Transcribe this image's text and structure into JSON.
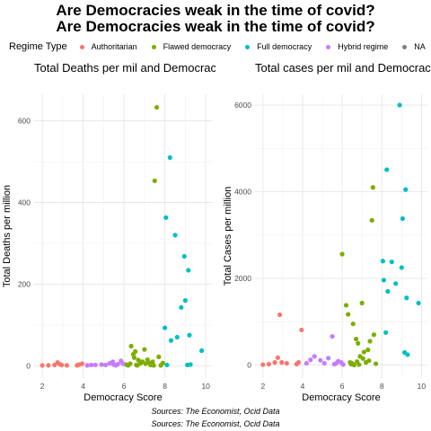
{
  "titles": [
    "Are Democracies weak in the time of covid?",
    "Are Democracies weak in the time of covid?"
  ],
  "legend": {
    "title": "Regime Type",
    "items": [
      {
        "label": "Authoritarian",
        "color": "#f8766d"
      },
      {
        "label": "Flawed democracy",
        "color": "#7cae00"
      },
      {
        "label": "Full democracy",
        "color": "#00bfc4"
      },
      {
        "label": "Hybrid regime",
        "color": "#c77cff"
      },
      {
        "label": "NA",
        "color": "#7f7f7f"
      }
    ]
  },
  "sources": [
    "Sources: The Economist, Ocid Data",
    "Sources: The Economist, Ocid Data"
  ],
  "chart_data": [
    {
      "type": "scatter",
      "title": "Total Deaths per mil and Democracy",
      "xlabel": "Democracy Score",
      "ylabel": "Total Deaths per million",
      "xlim": [
        1.6,
        10.3
      ],
      "ylim": [
        -30,
        665
      ],
      "xticks": [
        2,
        4,
        6,
        8,
        10
      ],
      "yticks": [
        0,
        200,
        400,
        600
      ],
      "grid": true,
      "series": [
        {
          "name": "Authoritarian",
          "color": "#f8766d",
          "points": [
            [
              2.0,
              1
            ],
            [
              2.3,
              1
            ],
            [
              2.6,
              2
            ],
            [
              2.75,
              8
            ],
            [
              2.85,
              4
            ],
            [
              2.95,
              2
            ],
            [
              3.2,
              1
            ],
            [
              3.8,
              3
            ],
            [
              3.95,
              5
            ],
            [
              3.7,
              1
            ]
          ]
        },
        {
          "name": "Flawed democracy",
          "color": "#7cae00",
          "points": [
            [
              6.1,
              3
            ],
            [
              6.2,
              1
            ],
            [
              6.3,
              5
            ],
            [
              6.35,
              48
            ],
            [
              6.45,
              28
            ],
            [
              6.5,
              20
            ],
            [
              6.55,
              35
            ],
            [
              6.6,
              2
            ],
            [
              6.7,
              14
            ],
            [
              6.8,
              6
            ],
            [
              6.9,
              10
            ],
            [
              7.0,
              40
            ],
            [
              7.05,
              5
            ],
            [
              7.2,
              8
            ],
            [
              7.3,
              2
            ],
            [
              7.4,
              10
            ],
            [
              7.5,
              453
            ],
            [
              7.6,
              633
            ],
            [
              7.7,
              22
            ],
            [
              7.8,
              1
            ],
            [
              7.9,
              7
            ],
            [
              7.15,
              15
            ],
            [
              6.65,
              1
            ],
            [
              7.45,
              1
            ]
          ]
        },
        {
          "name": "Full democracy",
          "color": "#00bfc4",
          "points": [
            [
              8.0,
              93
            ],
            [
              8.05,
              363
            ],
            [
              8.25,
              510
            ],
            [
              8.3,
              62
            ],
            [
              8.1,
              2
            ],
            [
              8.5,
              320
            ],
            [
              8.6,
              70
            ],
            [
              8.8,
              143
            ],
            [
              8.95,
              268
            ],
            [
              9.0,
              160
            ],
            [
              9.15,
              234
            ],
            [
              9.2,
              75
            ],
            [
              9.1,
              2
            ],
            [
              9.25,
              3
            ],
            [
              9.8,
              37
            ]
          ]
        },
        {
          "name": "Hybrid regime",
          "color": "#c77cff",
          "points": [
            [
              4.2,
              1
            ],
            [
              4.4,
              2
            ],
            [
              4.9,
              3
            ],
            [
              5.1,
              2
            ],
            [
              5.3,
              6
            ],
            [
              5.45,
              10
            ],
            [
              5.5,
              3
            ],
            [
              5.6,
              1
            ],
            [
              5.85,
              12
            ],
            [
              5.95,
              5
            ],
            [
              4.6,
              2
            ],
            [
              5.7,
              4
            ]
          ]
        }
      ]
    },
    {
      "type": "scatter",
      "title": "Total cases per mil and Democracy",
      "xlabel": "Democracy Score",
      "ylabel": "Total Cases per million",
      "xlim": [
        1.6,
        10.3
      ],
      "ylim": [
        -300,
        6250
      ],
      "xticks": [
        2,
        4,
        6,
        8,
        10
      ],
      "yticks": [
        0,
        2000,
        4000,
        6000
      ],
      "grid": true,
      "series": [
        {
          "name": "Authoritarian",
          "color": "#f8766d",
          "points": [
            [
              2.0,
              10
            ],
            [
              2.3,
              20
            ],
            [
              2.6,
              60
            ],
            [
              2.75,
              170
            ],
            [
              2.85,
              1160
            ],
            [
              2.95,
              60
            ],
            [
              3.2,
              40
            ],
            [
              3.8,
              60
            ],
            [
              3.95,
              810
            ],
            [
              3.7,
              20
            ]
          ]
        },
        {
          "name": "Flawed democracy",
          "color": "#7cae00",
          "points": [
            [
              6.0,
              2560
            ],
            [
              6.2,
              1380
            ],
            [
              6.3,
              1170
            ],
            [
              6.4,
              60
            ],
            [
              6.5,
              40
            ],
            [
              6.55,
              950
            ],
            [
              6.6,
              1
            ],
            [
              6.7,
              600
            ],
            [
              6.8,
              500
            ],
            [
              6.9,
              200
            ],
            [
              7.0,
              1430
            ],
            [
              7.05,
              150
            ],
            [
              7.1,
              300
            ],
            [
              7.3,
              350
            ],
            [
              7.4,
              550
            ],
            [
              7.5,
              3340
            ],
            [
              7.55,
              4100
            ],
            [
              7.6,
              700
            ],
            [
              7.7,
              30
            ],
            [
              6.75,
              80
            ],
            [
              7.2,
              60
            ],
            [
              6.45,
              20
            ],
            [
              6.85,
              10
            ],
            [
              7.35,
              100
            ]
          ]
        },
        {
          "name": "Full democracy",
          "color": "#00bfc4",
          "points": [
            [
              8.05,
              2400
            ],
            [
              8.1,
              1960
            ],
            [
              8.2,
              750
            ],
            [
              8.25,
              4510
            ],
            [
              8.3,
              1700
            ],
            [
              8.5,
              2380
            ],
            [
              8.7,
              1880
            ],
            [
              8.9,
              6000
            ],
            [
              9.0,
              2250
            ],
            [
              9.05,
              3380
            ],
            [
              9.15,
              290
            ],
            [
              9.2,
              4050
            ],
            [
              9.3,
              240
            ],
            [
              9.25,
              1550
            ],
            [
              9.85,
              1430
            ]
          ]
        },
        {
          "name": "Hybrid regime",
          "color": "#c77cff",
          "points": [
            [
              4.2,
              40
            ],
            [
              4.4,
              120
            ],
            [
              4.9,
              110
            ],
            [
              5.1,
              40
            ],
            [
              5.3,
              160
            ],
            [
              5.5,
              660
            ],
            [
              5.6,
              20
            ],
            [
              5.8,
              90
            ],
            [
              5.95,
              60
            ],
            [
              4.6,
              200
            ],
            [
              5.7,
              40
            ],
            [
              6.05,
              10
            ]
          ]
        }
      ]
    }
  ]
}
